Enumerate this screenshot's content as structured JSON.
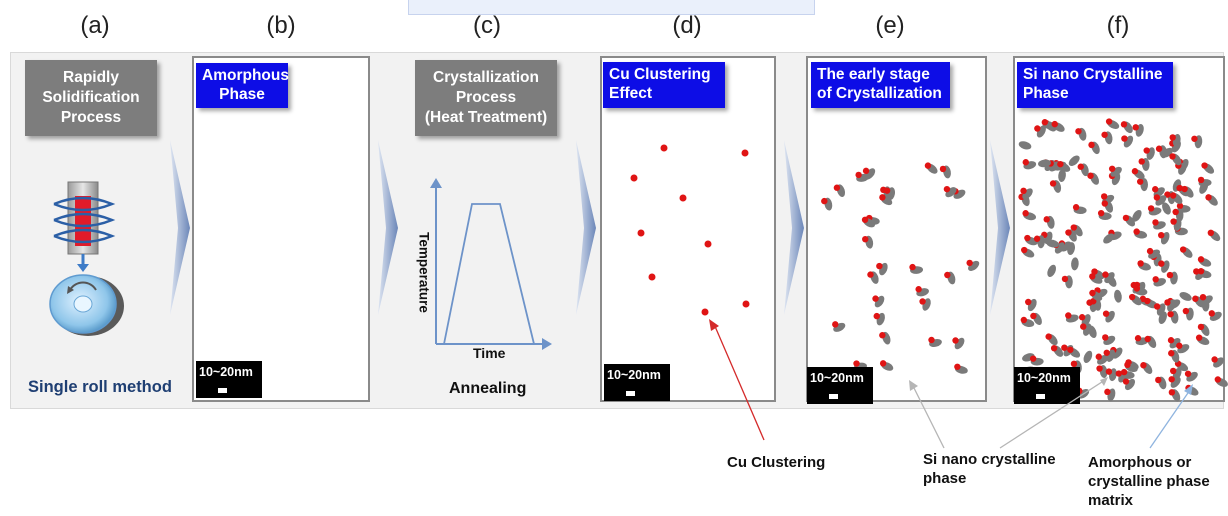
{
  "panel_labels": [
    "(a)",
    "(b)",
    "(c)",
    "(d)",
    "(e)",
    "(f)"
  ],
  "panel_a": {
    "title": "Rapidly\nSolidification\nProcess",
    "caption": "Single roll method"
  },
  "panel_b": {
    "title": "Amorphous\nPhase",
    "scale": "10~20nm"
  },
  "panel_c": {
    "title": "Crystallization\nProcess\n(Heat Treatment)",
    "y_axis": "Temperature",
    "x_axis": "Time",
    "caption": "Annealing"
  },
  "panel_d": {
    "title": "Cu Clustering\nEffect",
    "scale": "10~20nm"
  },
  "panel_e": {
    "title": "The early stage\nof Crystallization",
    "scale": "10~20nm"
  },
  "panel_f": {
    "title": "Si nano Crystalline\nPhase",
    "scale": "10~20nm"
  },
  "annotations": {
    "cu_clustering": "Cu Clustering",
    "si_nano": "Si nano crystalline\nphase",
    "matrix": "Amorphous or\ncrystalline phase\nmatrix"
  },
  "colors": {
    "cu_red": "#e01414",
    "si_grey": "#7a7a7a",
    "blue_label": "#0d0de6",
    "grey_label": "#7d7d7d",
    "annot_red": "#d42a2a",
    "annot_grey": "#b5b5b5",
    "annot_blue": "#8fb4df"
  }
}
